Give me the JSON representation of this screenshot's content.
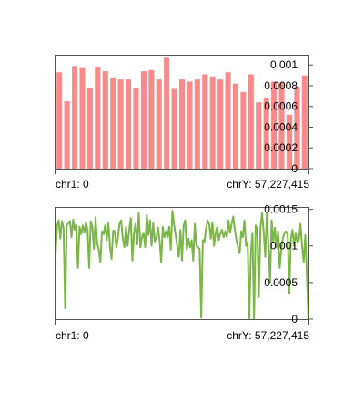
{
  "chart_data": [
    {
      "type": "bar",
      "color": "#f88a8a",
      "ylim": [
        0,
        0.00109
      ],
      "y_ticks": [
        "0",
        "0.0002",
        "0.0004",
        "0.0006",
        "0.0008",
        "0.001"
      ],
      "y_tick_values": [
        0,
        0.0002,
        0.0004,
        0.0006,
        0.0008,
        0.001
      ],
      "x_start_label": "chr1: 0",
      "x_end_label": "chrY: 57,227,415",
      "values": [
        0.00093,
        0.00065,
        0.00099,
        0.00097,
        0.00078,
        0.00098,
        0.00094,
        0.00088,
        0.00086,
        0.00086,
        0.00078,
        0.00094,
        0.00095,
        0.00086,
        0.00107,
        0.00077,
        0.00086,
        0.00084,
        0.00086,
        0.00091,
        0.00089,
        0.00086,
        0.00093,
        0.00082,
        0.00074,
        0.00091,
        0.00064,
        0.00068,
        0.00084,
        0.00083,
        0.00052,
        0.00079,
        0.0009
      ]
    },
    {
      "type": "line",
      "color": "#7ab648",
      "ylim": [
        0,
        0.00152
      ],
      "y_ticks": [
        "0",
        "0.0005",
        "0.001",
        "0.0015"
      ],
      "y_tick_values": [
        0,
        0.0005,
        0.001,
        0.0015
      ],
      "x_start_label": "chr1: 0",
      "x_end_label": "chrY: 57,227,415",
      "values": [
        0.00088,
        0.00128,
        0.00135,
        0.0011,
        0.00134,
        0.00125,
        0.00015,
        0.00128,
        0.00131,
        0.00134,
        0.00112,
        0.00136,
        0.00122,
        0.00129,
        0.0007,
        0.00126,
        0.00116,
        0.00128,
        0.00118,
        0.00132,
        0.00122,
        0.0007,
        0.00134,
        0.00126,
        0.00096,
        0.00139,
        0.00104,
        0.00095,
        0.00078,
        0.0012,
        0.00116,
        0.00128,
        0.00108,
        0.00131,
        0.001,
        0.00082,
        0.00121,
        0.0012,
        0.00098,
        0.00112,
        0.00131,
        0.00135,
        0.0011,
        0.00098,
        0.00126,
        0.001,
        0.00121,
        0.00138,
        0.0008,
        0.00118,
        0.0013,
        0.00102,
        0.00145,
        0.00098,
        0.00112,
        0.00118,
        0.00098,
        0.00142,
        0.00115,
        0.00135,
        0.001,
        0.00131,
        0.00106,
        0.00112,
        0.00125,
        0.00108,
        0.00078,
        0.00126,
        0.00112,
        0.0012,
        0.00112,
        0.00126,
        0.00095,
        0.00148,
        0.0013,
        0.00115,
        0.001,
        0.00085,
        0.00122,
        0.0008,
        0.00128,
        0.00135,
        0.00095,
        0.0011,
        0.00098,
        0.00108,
        0.0008,
        0.0013,
        0.001,
        0.00098,
        0.00096,
        2e-05,
        0.00108,
        0.00105,
        0.00124,
        0.00135,
        0.0013,
        0.0011,
        0.00132,
        0.001,
        0.00118,
        0.00126,
        0.00108,
        0.00118,
        0.00122,
        0.00112,
        0.0012,
        0.00112,
        0.00135,
        0.00118,
        0.0013,
        0.0014,
        0.00122,
        0.00108,
        0.00098,
        0.0009,
        0.0012,
        0.00112,
        0.00135,
        0.001,
        0.00105,
        0.0,
        0.0009,
        0.00118,
        0.0,
        0.00128,
        0.00122,
        0.0003,
        0.00125,
        0.00145,
        0.0012,
        0.00085,
        0.00145,
        0.001,
        0.0005,
        0.00135,
        0.00105,
        0.00125,
        0.00098,
        0.0012,
        0.0007,
        0.00095,
        0.0011,
        0.00118,
        0.0012,
        0.00115,
        0.00035,
        0.0011,
        0.00122,
        0.001,
        0.00118,
        0.00105,
        0.00108,
        0.0013,
        0.001,
        0.00078,
        0.00115,
        0.0006,
        0.0
      ]
    }
  ]
}
